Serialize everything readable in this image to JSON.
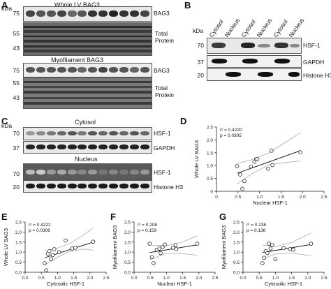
{
  "panels": {
    "A": {
      "label": "A",
      "kda_label": "kDa",
      "blot1": {
        "title": "Whole LV BAG3",
        "protein": "BAG3",
        "marker": "75"
      },
      "blot2": {
        "label_line1": "Total",
        "label_line2": "Protein",
        "markers": [
          "55",
          "43"
        ]
      },
      "blot3": {
        "title": "Myofilament BAG3",
        "protein": "BAG3",
        "marker": "75"
      },
      "blot4": {
        "label_line1": "Total",
        "label_line2": "Protein",
        "markers": [
          "55",
          "43"
        ]
      }
    },
    "B": {
      "label": "B",
      "kda_label": "kDa",
      "lanes": [
        "Cytosol",
        "Nucleus",
        "Cytosol",
        "Nucleus",
        "Cytosol",
        "Nucleus"
      ],
      "blots": [
        {
          "protein": "HSF-1",
          "marker": "70"
        },
        {
          "protein": "GAPDH",
          "marker": "37"
        },
        {
          "protein": "Histone H3",
          "marker": "20"
        }
      ]
    },
    "C": {
      "label": "C",
      "kda_label": "kDa",
      "cytosol_title": "Cytosol",
      "nucleus_title": "Nucleus",
      "blots": [
        {
          "protein": "HSF-1",
          "marker": "70"
        },
        {
          "protein": "GAPDH",
          "marker": "37"
        },
        {
          "protein": "HSF-1",
          "marker": "70"
        },
        {
          "protein": "Histone H3",
          "marker": "20"
        }
      ]
    }
  },
  "chart_data": [
    {
      "panel": "D",
      "type": "scatter",
      "xlabel": "Nuclear HSF-1",
      "ylabel": "Whole LV BAG3",
      "stats": [
        "r² = 0.4220",
        "p = 0.0305"
      ],
      "xlim": [
        0,
        2.5
      ],
      "ylim": [
        0,
        2.5
      ],
      "xticks": [
        0,
        0.5,
        1,
        1.5,
        2,
        2.5
      ],
      "yticks": [
        0,
        0.5,
        1,
        1.5,
        2,
        2.5
      ],
      "xticklabels": [
        "0",
        "0.5",
        "1.0",
        "1.5",
        "2.0",
        "2.5"
      ],
      "yticklabels": [
        "0",
        "0.5",
        "1.0",
        "1.5",
        "2.0",
        "2.5"
      ],
      "x": [
        0.48,
        0.55,
        0.6,
        0.65,
        0.8,
        0.88,
        0.92,
        0.95,
        1.2,
        1.28,
        1.3,
        1.95
      ],
      "y": [
        0.98,
        0.65,
        0.1,
        0.4,
        0.96,
        1.15,
        1.25,
        1.25,
        0.88,
        1.58,
        1.02,
        1.52
      ],
      "fit": [
        [
          0.48,
          0.7
        ],
        [
          1.95,
          1.58
        ]
      ],
      "ci_upper": [
        [
          0.48,
          1.08
        ],
        [
          0.8,
          1.22
        ],
        [
          1.2,
          1.48
        ],
        [
          1.6,
          1.9
        ],
        [
          1.95,
          2.28
        ]
      ],
      "ci_lower": [
        [
          0.48,
          0.28
        ],
        [
          0.8,
          0.66
        ],
        [
          1.2,
          1.02
        ],
        [
          1.6,
          1.12
        ],
        [
          1.95,
          1.18
        ]
      ]
    },
    {
      "panel": "E",
      "type": "scatter",
      "xlabel": "Cytosolic HSF-1",
      "ylabel": "Whole LV BAG3",
      "stats": [
        "r² = 0.4222",
        "p = 0.0306"
      ],
      "xlim": [
        0,
        2.5
      ],
      "ylim": [
        0,
        2.5
      ],
      "xticks": [
        0,
        0.5,
        1,
        1.5,
        2,
        2.5
      ],
      "yticks": [
        0,
        0.5,
        1,
        1.5,
        2,
        2.5
      ],
      "xticklabels": [
        "0.0",
        "0.5",
        "1.0",
        "1.5",
        "2.0",
        "2.5"
      ],
      "yticklabels": [
        "0.0",
        "0.5",
        "1.0",
        "1.5",
        "2.0",
        "2.5"
      ],
      "x": [
        0.6,
        0.65,
        0.7,
        0.75,
        0.8,
        0.85,
        0.9,
        1.05,
        1.25,
        1.45,
        1.55,
        2.1
      ],
      "y": [
        0.45,
        0.1,
        0.92,
        1.05,
        0.65,
        0.85,
        1.15,
        1.0,
        1.58,
        1.18,
        1.22,
        1.52
      ],
      "fit": [
        [
          0.6,
          0.72
        ],
        [
          2.1,
          1.5
        ]
      ],
      "ci_upper": [
        [
          0.6,
          1.05
        ],
        [
          1.0,
          1.2
        ],
        [
          1.4,
          1.45
        ],
        [
          1.8,
          1.85
        ],
        [
          2.1,
          2.2
        ]
      ],
      "ci_lower": [
        [
          0.6,
          0.35
        ],
        [
          1.0,
          0.75
        ],
        [
          1.4,
          1.05
        ],
        [
          1.8,
          1.15
        ],
        [
          2.1,
          1.1
        ]
      ]
    },
    {
      "panel": "F",
      "type": "scatter",
      "xlabel": "Nuclear HSF-1",
      "ylabel": "Myofilament BAG3",
      "stats": [
        "r² = 0.208",
        "p = 0.159"
      ],
      "xlim": [
        0,
        2.5
      ],
      "ylim": [
        0,
        2.5
      ],
      "xticks": [
        0,
        0.5,
        1,
        1.5,
        2,
        2.5
      ],
      "yticks": [
        0,
        0.5,
        1,
        1.5,
        2,
        2.5
      ],
      "xticklabels": [
        "0.0",
        "0.5",
        "1.0",
        "1.5",
        "2.0",
        "2.5"
      ],
      "yticklabels": [
        "0.0",
        "0.5",
        "1.0",
        "1.5",
        "2.0",
        "2.5"
      ],
      "x": [
        0.48,
        0.55,
        0.6,
        0.7,
        0.78,
        0.82,
        0.88,
        0.95,
        1.2,
        1.28,
        1.3,
        1.95
      ],
      "y": [
        1.42,
        0.75,
        0.45,
        1.12,
        1.18,
        0.95,
        1.25,
        1.38,
        1.22,
        1.35,
        1.15,
        1.42
      ],
      "fit": [
        [
          0.48,
          0.98
        ],
        [
          1.95,
          1.36
        ]
      ],
      "ci_upper": [
        [
          0.48,
          1.35
        ],
        [
          1.0,
          1.32
        ],
        [
          1.5,
          1.5
        ],
        [
          1.95,
          1.82
        ]
      ],
      "ci_lower": [
        [
          0.48,
          0.62
        ],
        [
          1.0,
          0.95
        ],
        [
          1.5,
          0.92
        ],
        [
          1.95,
          0.85
        ]
      ]
    },
    {
      "panel": "G",
      "type": "scatter",
      "xlabel": "Cytosolic HSF-1",
      "ylabel": "Myofilament BAG3",
      "stats": [
        "r² = 0.238",
        "p = 0.138"
      ],
      "xlim": [
        0,
        2.5
      ],
      "ylim": [
        0,
        2.5
      ],
      "xticks": [
        0,
        0.5,
        1,
        1.5,
        2,
        2.5
      ],
      "yticks": [
        0,
        0.5,
        1,
        1.5,
        2,
        2.5
      ],
      "xticklabels": [
        "0.0",
        "0.5",
        "1.0",
        "1.5",
        "2.0",
        "2.5"
      ],
      "yticklabels": [
        "0.0",
        "0.5",
        "1.0",
        "1.5",
        "2.0",
        "2.5"
      ],
      "x": [
        0.6,
        0.65,
        0.7,
        0.75,
        0.8,
        0.85,
        0.9,
        1.0,
        1.25,
        1.45,
        1.55,
        2.1
      ],
      "y": [
        0.45,
        0.72,
        1.05,
        0.95,
        1.42,
        1.18,
        1.35,
        0.65,
        1.2,
        1.15,
        1.12,
        1.42
      ],
      "fit": [
        [
          0.6,
          0.98
        ],
        [
          2.1,
          1.38
        ]
      ],
      "ci_upper": [
        [
          0.6,
          1.35
        ],
        [
          1.0,
          1.28
        ],
        [
          1.5,
          1.48
        ],
        [
          2.1,
          1.95
        ]
      ],
      "ci_lower": [
        [
          0.6,
          0.65
        ],
        [
          1.0,
          0.92
        ],
        [
          1.5,
          0.95
        ],
        [
          2.1,
          0.82
        ]
      ]
    }
  ]
}
